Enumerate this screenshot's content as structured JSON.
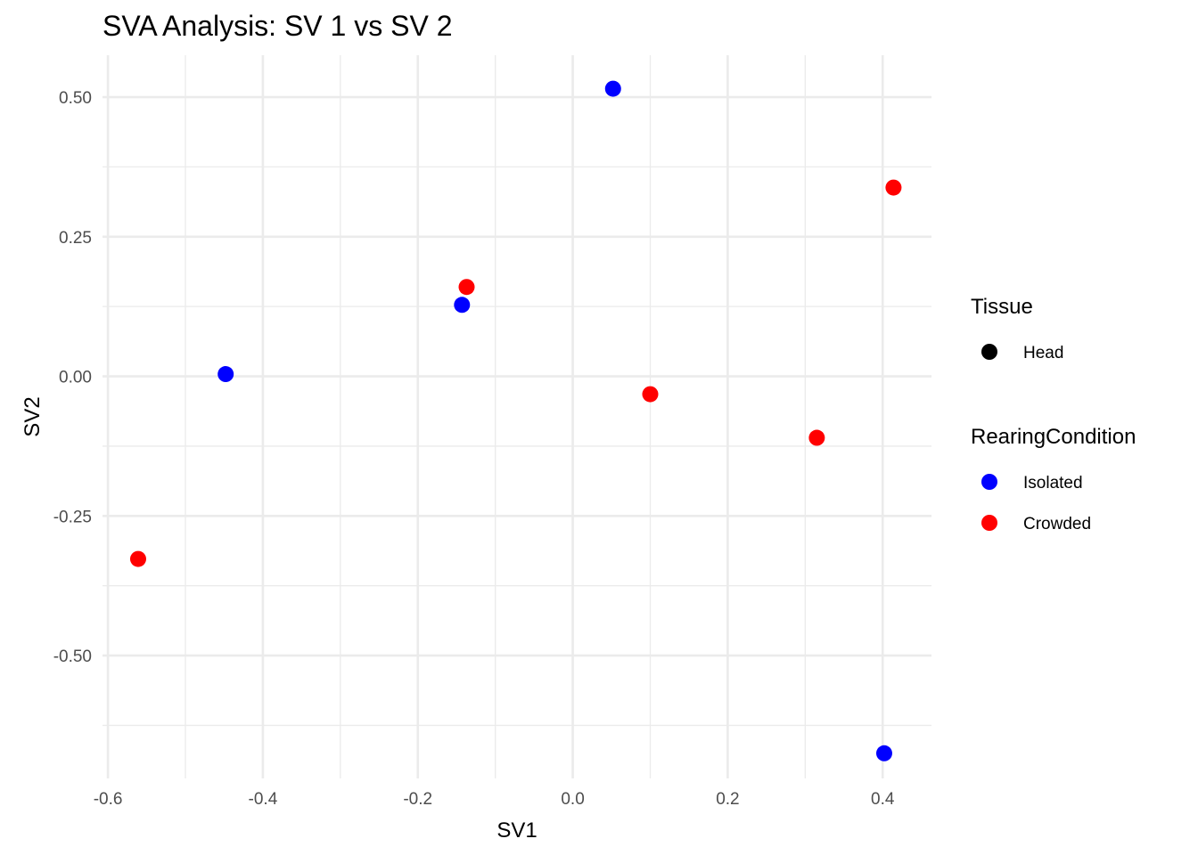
{
  "chart_data": {
    "type": "scatter",
    "title": "SVA Analysis: SV 1  vs SV 2",
    "xlabel": "SV1",
    "ylabel": "SV2",
    "xlim": [
      -0.607,
      0.463
    ],
    "ylim": [
      -0.72,
      0.575
    ],
    "x_ticks": [
      -0.6,
      -0.4,
      -0.2,
      0.0,
      0.2,
      0.4
    ],
    "x_tick_labels": [
      "-0.6",
      "-0.4",
      "-0.2",
      "0.0",
      "0.2",
      "0.4"
    ],
    "y_ticks": [
      -0.5,
      -0.25,
      0.0,
      0.25,
      0.5
    ],
    "y_tick_labels": [
      "-0.50",
      "-0.25",
      "0.00",
      "0.25",
      "0.50"
    ],
    "grid": true,
    "legend_position": "right",
    "legends": [
      {
        "title": "Tissue",
        "entries": [
          {
            "label": "Head",
            "color": "#000000"
          }
        ]
      },
      {
        "title": "RearingCondition",
        "entries": [
          {
            "label": "Isolated",
            "color": "#0000ff"
          },
          {
            "label": "Crowded",
            "color": "#ff0000"
          }
        ]
      }
    ],
    "series": [
      {
        "name": "Isolated",
        "color": "#0000ff",
        "points": [
          {
            "x": 0.052,
            "y": 0.515
          },
          {
            "x": -0.143,
            "y": 0.128
          },
          {
            "x": -0.448,
            "y": 0.004
          },
          {
            "x": 0.402,
            "y": -0.675
          }
        ]
      },
      {
        "name": "Crowded",
        "color": "#ff0000",
        "points": [
          {
            "x": 0.414,
            "y": 0.338
          },
          {
            "x": -0.137,
            "y": 0.16
          },
          {
            "x": 0.1,
            "y": -0.032
          },
          {
            "x": 0.315,
            "y": -0.11
          },
          {
            "x": -0.561,
            "y": -0.327
          }
        ]
      }
    ]
  }
}
